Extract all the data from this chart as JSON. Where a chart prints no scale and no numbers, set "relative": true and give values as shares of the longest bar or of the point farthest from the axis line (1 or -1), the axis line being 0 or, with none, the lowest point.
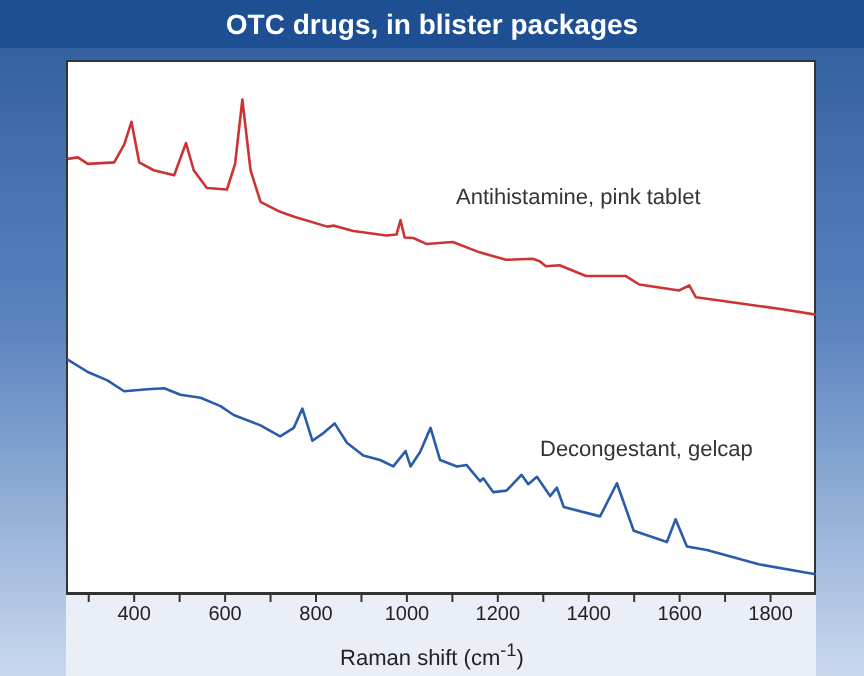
{
  "chart_data": {
    "type": "line",
    "title": "OTC drugs, in blister packages",
    "xlabel": "Raman shift (cm$^{-1}$)",
    "relative": true,
    "marker": "none",
    "line_style": "solid",
    "xlim": [
      250,
      1900
    ],
    "xticks": [
      {
        "value": 300,
        "label": null
      },
      400,
      {
        "value": 500,
        "label": null
      },
      600,
      {
        "value": 700,
        "label": null
      },
      800,
      {
        "value": 900,
        "label": null
      },
      1000,
      {
        "value": 1100,
        "label": null
      },
      1200,
      {
        "value": 1300,
        "label": null
      },
      1400,
      {
        "value": 1500,
        "label": null
      },
      1600,
      {
        "value": 1700,
        "label": null
      },
      1800
    ],
    "series": [
      {
        "name": "Antihistamine, pink tablet",
        "color": "#cc3333",
        "x": [
          254,
          276,
          298,
          356,
          378,
          394,
          411,
          443,
          488,
          514,
          531,
          560,
          604,
          622,
          638,
          656,
          678,
          721,
          752,
          825,
          840,
          882,
          955,
          977,
          986,
          995,
          1014,
          1043,
          1072,
          1101,
          1160,
          1218,
          1277,
          1292,
          1306,
          1336,
          1394,
          1482,
          1511,
          1599,
          1621,
          1636,
          1731,
          1833,
          1899
        ],
        "values": [
          0.88,
          0.883,
          0.87,
          0.873,
          0.909,
          0.955,
          0.873,
          0.857,
          0.847,
          0.912,
          0.857,
          0.821,
          0.818,
          0.87,
          1,
          0.857,
          0.793,
          0.773,
          0.763,
          0.743,
          0.745,
          0.734,
          0.725,
          0.727,
          0.756,
          0.721,
          0.72,
          0.708,
          0.71,
          0.712,
          0.691,
          0.676,
          0.678,
          0.673,
          0.663,
          0.665,
          0.643,
          0.643,
          0.626,
          0.614,
          0.624,
          0.6,
          0.588,
          0.575,
          0.565
        ]
      },
      {
        "name": "Decongestant, gelcap",
        "color": "#2a5caa",
        "x": [
          252,
          298,
          341,
          378,
          429,
          466,
          502,
          546,
          590,
          619,
          678,
          721,
          751,
          770,
          792,
          817,
          841,
          868,
          904,
          941,
          970,
          997,
          1008,
          1029,
          1052,
          1073,
          1110,
          1131,
          1161,
          1168,
          1190,
          1219,
          1252,
          1267,
          1286,
          1315,
          1330,
          1345,
          1425,
          1462,
          1499,
          1572,
          1591,
          1616,
          1660,
          1774,
          1899
        ],
        "values": [
          0.475,
          0.449,
          0.432,
          0.41,
          0.414,
          0.416,
          0.403,
          0.397,
          0.38,
          0.362,
          0.341,
          0.319,
          0.336,
          0.375,
          0.31,
          0.326,
          0.345,
          0.306,
          0.28,
          0.271,
          0.258,
          0.289,
          0.258,
          0.287,
          0.336,
          0.271,
          0.258,
          0.261,
          0.228,
          0.234,
          0.206,
          0.209,
          0.241,
          0.222,
          0.237,
          0.198,
          0.215,
          0.176,
          0.157,
          0.224,
          0.128,
          0.105,
          0.151,
          0.096,
          0.089,
          0.06,
          0.04
        ]
      }
    ]
  }
}
